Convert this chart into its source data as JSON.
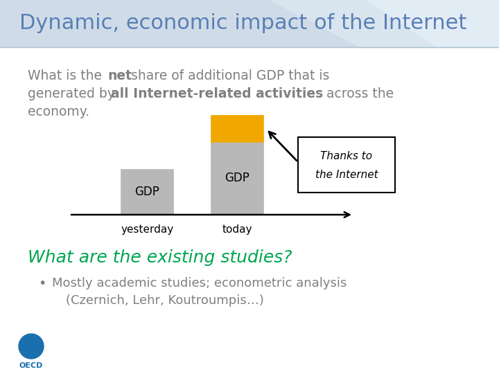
{
  "title": "Dynamic, economic impact of the Internet",
  "title_color": "#5a7fb5",
  "body_bg": "#ffffff",
  "text_color": "#808080",
  "bar_color_gdp": "#b8b8b8",
  "bar_color_internet": "#f0a800",
  "label_yesterday": "yesterday",
  "label_today": "today",
  "label_gdp": "GDP",
  "box_text_line1": "Thanks to",
  "box_text_line2": "the Internet",
  "italic_heading": "What are the existing studies?",
  "italic_heading_color": "#00a651",
  "bullet_text_line1": "Mostly academic studies; econometric analysis",
  "bullet_text_line2": "(Czernich, Lehr, Koutroumpis…)"
}
